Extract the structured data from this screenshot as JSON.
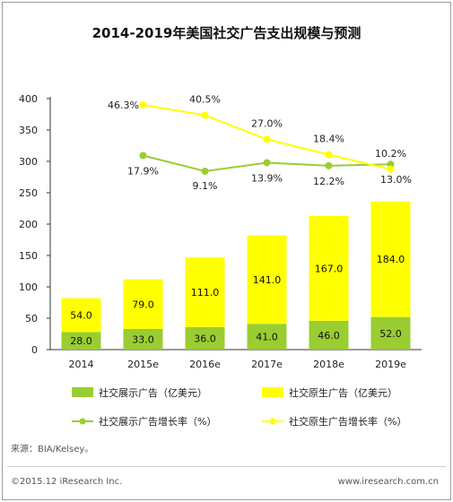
{
  "title": "2014-2019年美国社交广告支出规模与预测",
  "source": "来源：BIA/Kelsey。",
  "footer": {
    "copyright": "©2015.12 iResearch Inc.",
    "website": "www.iresearch.com.cn"
  },
  "colors": {
    "display": "#9acd32",
    "native": "#ffff00",
    "display_line": "#9acd32",
    "native_line": "#ffff00"
  },
  "chart_data": {
    "type": "bar",
    "stacked": true,
    "categories": [
      "2014",
      "2015e",
      "2016e",
      "2017e",
      "2018e",
      "2019e"
    ],
    "ylim": [
      0,
      400
    ],
    "yticks": [
      0,
      50,
      100,
      150,
      200,
      250,
      300,
      350,
      400
    ],
    "grid": false,
    "legend_position": "bottom",
    "series": [
      {
        "name": "社交展示广告（亿美元）",
        "values": [
          28.0,
          33.0,
          36.0,
          41.0,
          46.0,
          52.0
        ],
        "labels": [
          "28.0",
          "33.0",
          "36.0",
          "41.0",
          "46.0",
          "52.0"
        ]
      },
      {
        "name": "社交原生广告（亿美元）",
        "values": [
          54.0,
          79.0,
          111.0,
          141.0,
          167.0,
          184.0
        ],
        "labels": [
          "54.0",
          "79.0",
          "111.0",
          "141.0",
          "167.0",
          "184.0"
        ]
      }
    ],
    "line_series": [
      {
        "name": "社交展示广告增长率（%）",
        "values": [
          null,
          17.9,
          9.1,
          13.9,
          12.2,
          13.0
        ],
        "labels": [
          "",
          "17.9%",
          "9.1%",
          "13.9%",
          "12.2%",
          "13.0%"
        ]
      },
      {
        "name": "社交原生广告增长率（%）",
        "values": [
          null,
          46.3,
          40.5,
          27.0,
          18.4,
          10.2
        ],
        "labels": [
          "",
          "46.3%",
          "40.5%",
          "27.0%",
          "18.4%",
          "10.2%"
        ]
      }
    ]
  }
}
